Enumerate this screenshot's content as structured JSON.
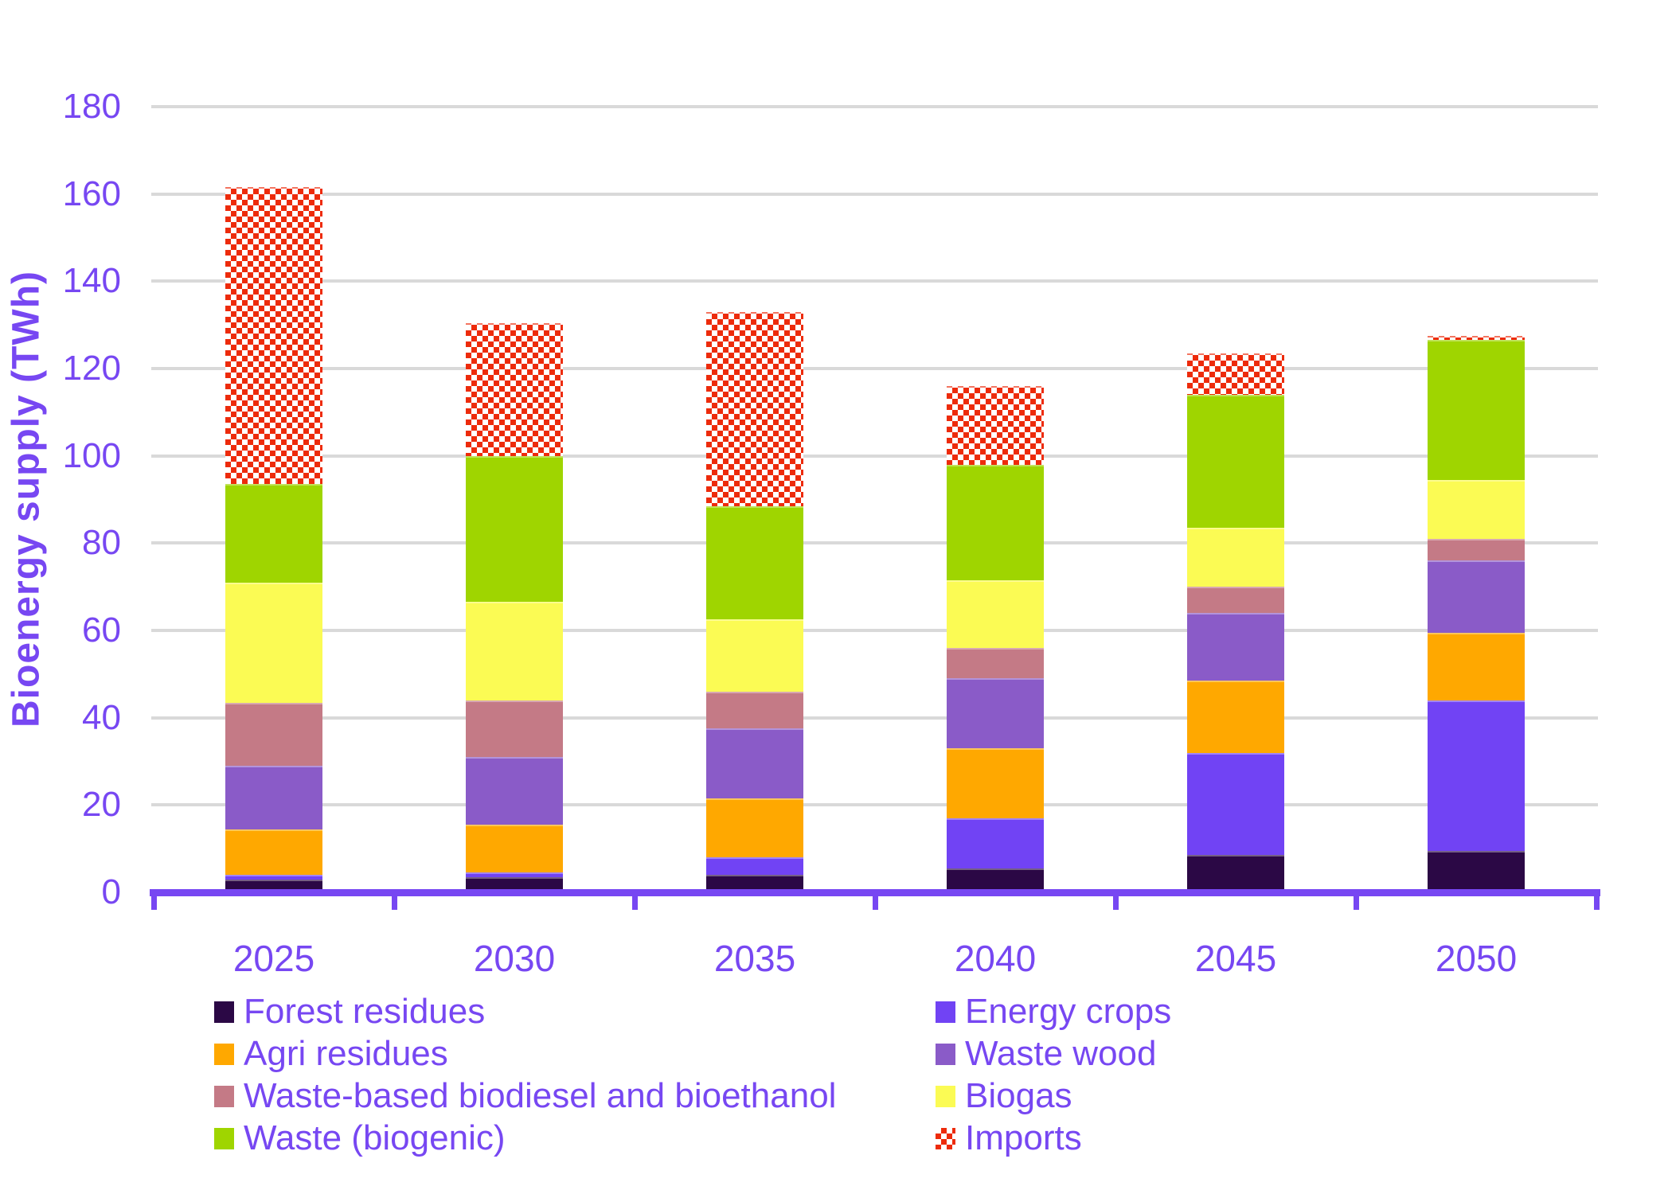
{
  "styles": {
    "background": "#FFFFFF",
    "text_color": "#7747F2",
    "axis_color": "#7747F2",
    "grid_color": "#D9D9D9",
    "imports_pattern": "red-white-checkerboard"
  },
  "chart_data": {
    "type": "bar",
    "stacked": true,
    "title": "",
    "xlabel": "",
    "ylabel": "Bioenergy supply (TWh)",
    "ylim": [
      0,
      180
    ],
    "ytick_step": 20,
    "grid": true,
    "legend_position": "bottom",
    "legend_columns": 2,
    "categories": [
      "2025",
      "2030",
      "2035",
      "2040",
      "2045",
      "2050"
    ],
    "series": [
      {
        "name": "Forest residues",
        "color": "#2B0845",
        "pattern": "solid",
        "values": [
          3,
          3.5,
          4,
          5.5,
          8.5,
          9.5
        ]
      },
      {
        "name": "Energy crops",
        "color": "#7143F4",
        "pattern": "solid",
        "values": [
          1,
          1,
          4,
          11.5,
          23.5,
          34.5
        ]
      },
      {
        "name": "Agri residues",
        "color": "#FFA800",
        "pattern": "solid",
        "values": [
          10.5,
          11,
          13.5,
          16,
          16.5,
          15.5
        ]
      },
      {
        "name": "Waste wood",
        "color": "#8A5BC8",
        "pattern": "solid",
        "values": [
          14.5,
          15.5,
          16,
          16,
          15.5,
          16.5
        ]
      },
      {
        "name": "Waste-based biodiesel and bioethanol",
        "color": "#C47A86",
        "pattern": "solid",
        "values": [
          14.5,
          13,
          8.5,
          7,
          6,
          5
        ]
      },
      {
        "name": "Biogas",
        "color": "#FBFB54",
        "pattern": "solid",
        "values": [
          27.5,
          22.5,
          16.5,
          15.5,
          13.5,
          13.5
        ]
      },
      {
        "name": "Waste (biogenic)",
        "color": "#9FD500",
        "pattern": "solid",
        "values": [
          22.5,
          33.5,
          26,
          26.5,
          30.5,
          32
        ]
      },
      {
        "name": "Imports",
        "color": "#ED2B0B",
        "pattern": "checker",
        "values": [
          68,
          30.5,
          44.5,
          18,
          9.5,
          1
        ]
      }
    ],
    "totals": [
      161.5,
      130.5,
      133,
      116,
      123.5,
      127.5
    ]
  }
}
